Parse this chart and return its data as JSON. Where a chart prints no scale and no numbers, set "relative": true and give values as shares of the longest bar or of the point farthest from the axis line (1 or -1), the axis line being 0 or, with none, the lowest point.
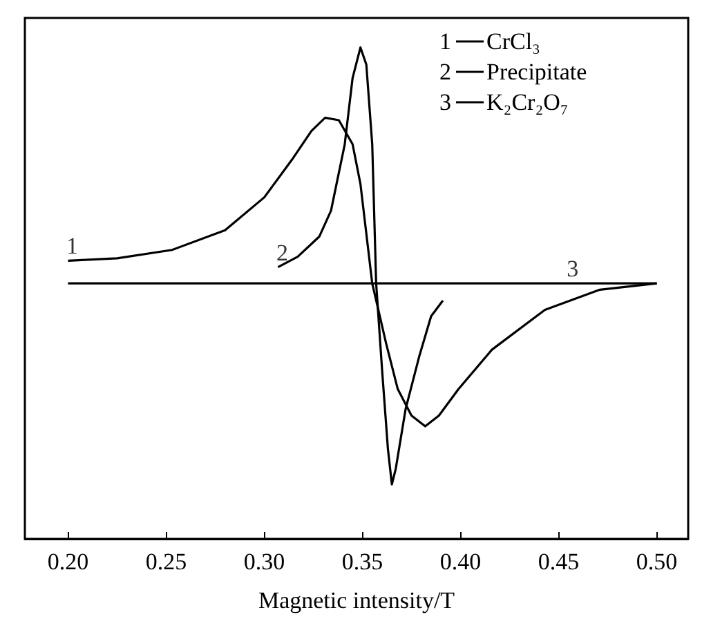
{
  "chart_data": {
    "type": "line",
    "xlabel": "Magnetic intensity/T",
    "relative": true,
    "xlim": [
      0.178,
      0.516
    ],
    "xticks": [
      {
        "value": 0.2,
        "label": "0.20"
      },
      {
        "value": 0.25,
        "label": "0.25"
      },
      {
        "value": 0.3,
        "label": "0.30"
      },
      {
        "value": 0.35,
        "label": "0.35"
      },
      {
        "value": 0.4,
        "label": "0.40"
      },
      {
        "value": 0.45,
        "label": "0.45"
      },
      {
        "value": 0.5,
        "label": "0.50"
      }
    ],
    "tick_labels": "x",
    "grid": false,
    "legend": "top right",
    "marker": "none",
    "line_style": "solid",
    "series": [
      {
        "name": "CrCl₃",
        "color": "#000000",
        "x": [
          0.2,
          0.225,
          0.253,
          0.28,
          0.3,
          0.314,
          0.324,
          0.331,
          0.338,
          0.345,
          0.349,
          0.355,
          0.362,
          0.368,
          0.375,
          0.382,
          0.389,
          0.399,
          0.416,
          0.443,
          0.471,
          0.5
        ],
        "values": [
          0.566,
          0.571,
          0.588,
          0.628,
          0.695,
          0.771,
          0.83,
          0.857,
          0.852,
          0.803,
          0.722,
          0.52,
          0.399,
          0.305,
          0.251,
          0.229,
          0.251,
          0.305,
          0.385,
          0.466,
          0.507,
          0.52
        ]
      },
      {
        "name": "Precipitate",
        "color": "#000000",
        "x": [
          0.307,
          0.317,
          0.328,
          0.334,
          0.341,
          0.345,
          0.349,
          0.352,
          0.355,
          0.357,
          0.36,
          0.363,
          0.365,
          0.367,
          0.372,
          0.379,
          0.385,
          0.391
        ],
        "values": [
          0.553,
          0.574,
          0.615,
          0.668,
          0.803,
          0.938,
          1,
          0.965,
          0.803,
          0.52,
          0.345,
          0.183,
          0.111,
          0.143,
          0.264,
          0.372,
          0.453,
          0.485
        ]
      },
      {
        "name": "K₂Cr₂O₇",
        "color": "#000000",
        "x": [
          0.2,
          0.5
        ],
        "values": [
          0.52,
          0.52
        ]
      }
    ],
    "annotations": [
      {
        "text": "1",
        "x": 0.2,
        "y": 0.566
      },
      {
        "text": "2",
        "x": 0.307,
        "y": 0.553
      },
      {
        "text": "3",
        "x": 0.455,
        "y": 0.52
      }
    ]
  }
}
